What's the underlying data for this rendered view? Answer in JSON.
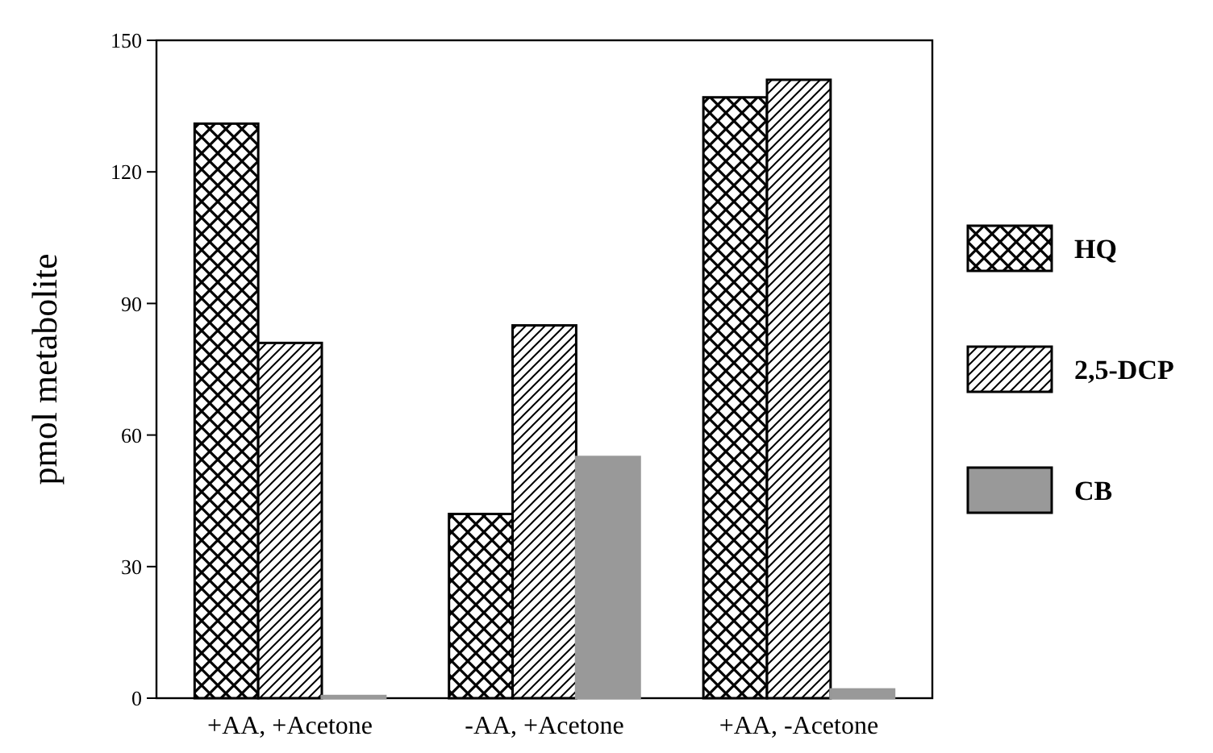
{
  "chart_data": {
    "type": "bar",
    "ylabel": "pmol metabolite",
    "categories": [
      "+AA, +Acetone",
      "-AA, +Acetone",
      "+AA, -Acetone"
    ],
    "series": [
      {
        "name": "HQ",
        "color": "#000000",
        "values": [
          131,
          42,
          137
        ]
      },
      {
        "name": "2,5-DCP",
        "color": "#000000",
        "values": [
          81,
          85,
          141
        ]
      },
      {
        "name": "CB",
        "color": "#999999",
        "values": [
          0.5,
          55,
          2
        ]
      }
    ],
    "ylim": [
      0,
      150
    ],
    "yticks": [
      0,
      30,
      60,
      90,
      120,
      150
    ],
    "legend": "right"
  }
}
